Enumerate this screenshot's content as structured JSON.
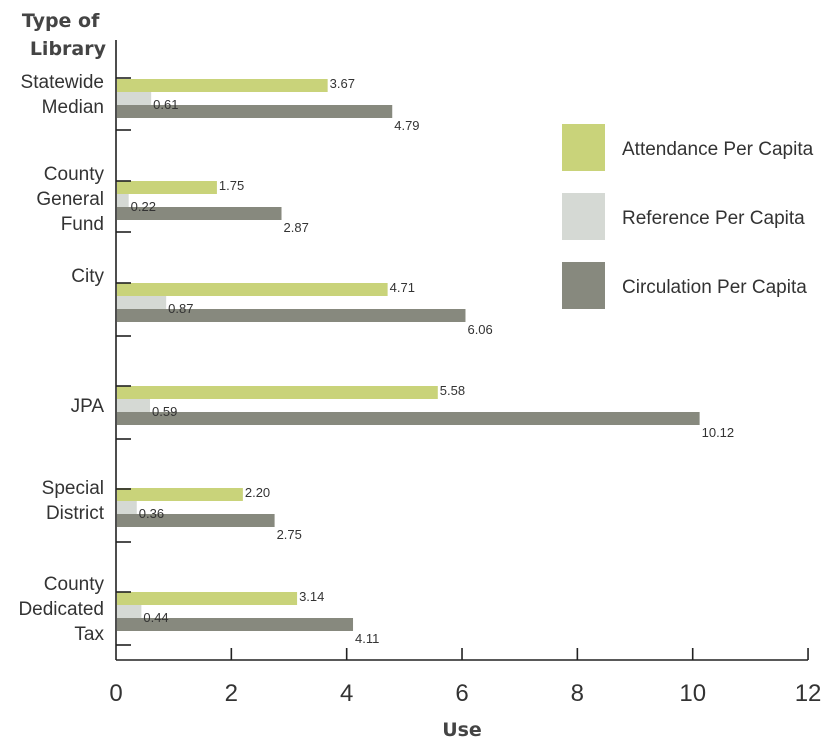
{
  "chart_data": {
    "type": "bar",
    "orientation": "horizontal",
    "title": "",
    "xlabel": "Use",
    "ylabel": "Type of Library",
    "xlim": [
      0,
      12
    ],
    "x_ticks": [
      "0",
      "2",
      "4",
      "6",
      "8",
      "10",
      "12"
    ],
    "grid": false,
    "legend_position": "right",
    "categories": [
      "Statewide Median",
      "County General Fund",
      "City",
      "JPA",
      "Special District",
      "County Dedicated Tax"
    ],
    "series": [
      {
        "name": "Attendance Per Capita",
        "color": "#c9d37a",
        "values": [
          3.67,
          1.75,
          4.71,
          5.58,
          2.2,
          3.14
        ],
        "labels": [
          "3.67",
          "1.75",
          "4.71",
          "5.58",
          "2.20",
          "3.14"
        ]
      },
      {
        "name": "Reference Per Capita",
        "color": "#d5d9d4",
        "values": [
          0.61,
          0.22,
          0.87,
          0.59,
          0.36,
          0.44
        ],
        "labels": [
          "0.61",
          "0.22",
          "0.87",
          "0.59",
          "0.36",
          "0.44"
        ]
      },
      {
        "name": "Circulation Per Capita",
        "color": "#87897e",
        "values": [
          4.79,
          2.87,
          6.06,
          10.12,
          2.75,
          4.11
        ],
        "labels": [
          "4.79",
          "2.87",
          "6.06",
          "10.12",
          "2.75",
          "4.11"
        ]
      }
    ]
  },
  "category_lines": [
    [
      "Statewide",
      "Median"
    ],
    [
      "County",
      "General",
      "Fund"
    ],
    [
      "City"
    ],
    [
      "JPA"
    ],
    [
      "Special",
      "District"
    ],
    [
      "County",
      "Dedicated",
      "Tax"
    ]
  ],
  "ylabel_lines": [
    "Type of",
    "Library"
  ]
}
